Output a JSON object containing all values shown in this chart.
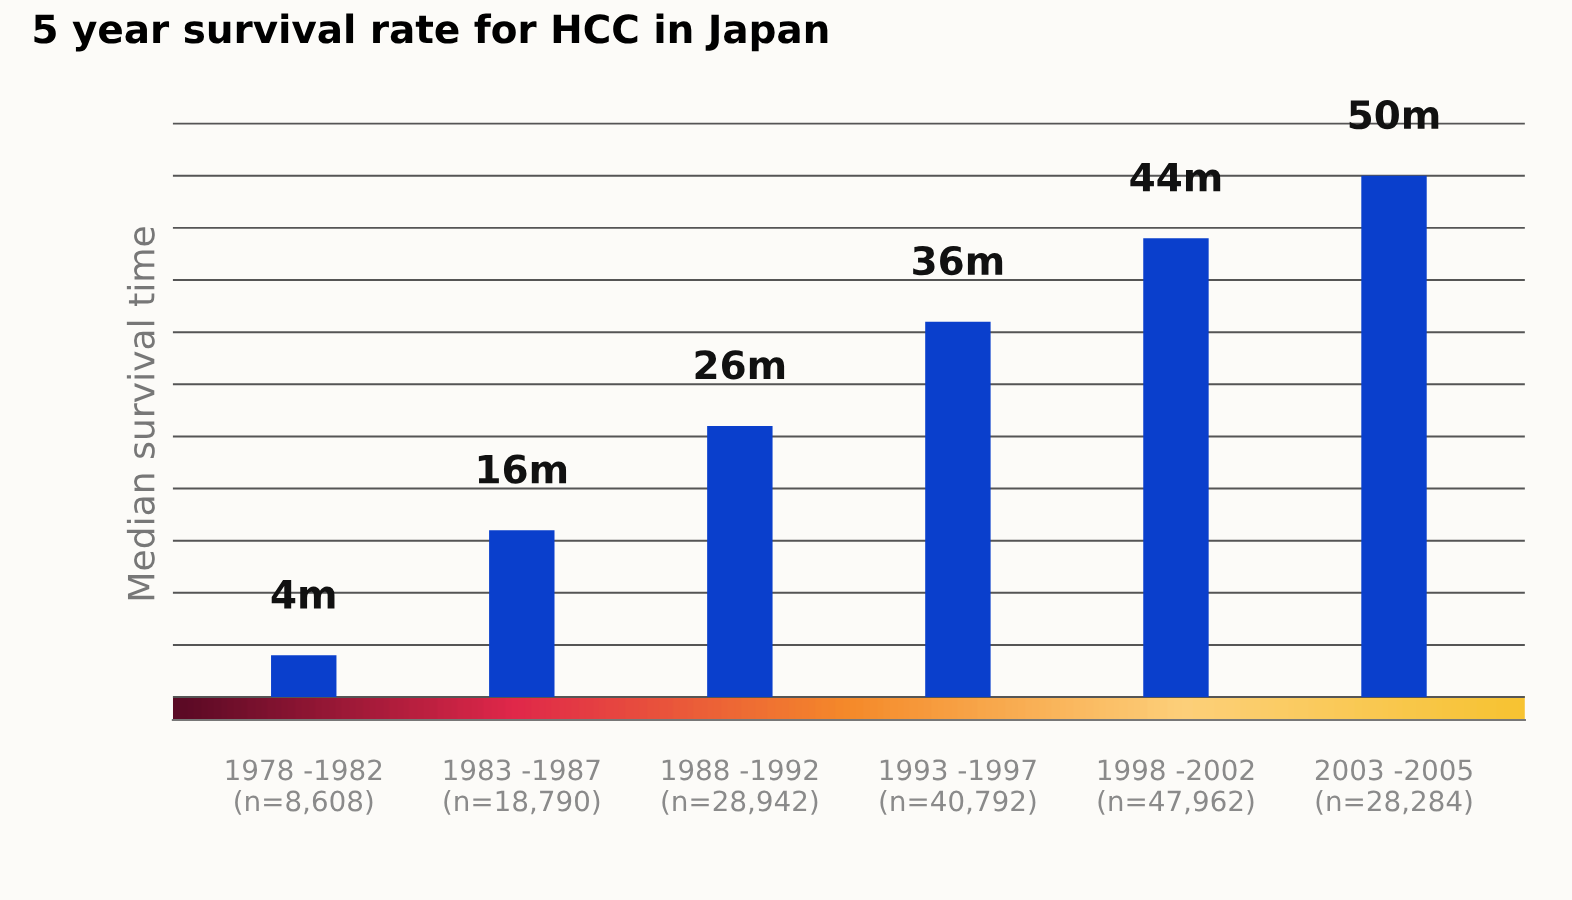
{
  "chart_data": {
    "type": "bar",
    "title": "5 year survival rate for HCC in Japan",
    "ylabel": "Median survival time",
    "categories": [
      "1978 -1982\n(n=8,608)",
      "1983 -1987\n(n=18,790)",
      "1988 -1992\n(n=28,942)",
      "1993 -1997\n(n=40,792)",
      "1998 -2002\n(n=47,962)",
      "2003 -2005\n(n=28,284)"
    ],
    "values": [
      4,
      16,
      26,
      36,
      44,
      50
    ],
    "value_labels": [
      "4m",
      "16m",
      "26m",
      "36m",
      "44m",
      "50m"
    ],
    "color": "#0a3fcc",
    "grid": "y",
    "tick_labels": "x"
  }
}
